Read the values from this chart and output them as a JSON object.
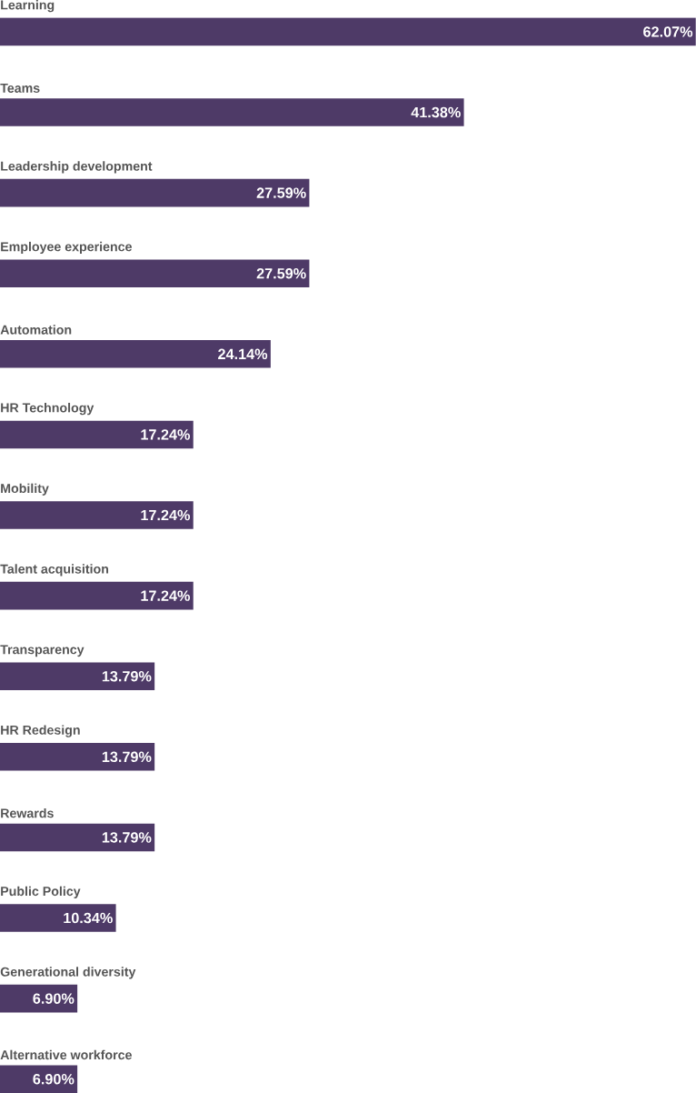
{
  "chart_data": {
    "type": "bar",
    "orientation": "horizontal",
    "color": "#4e3a67",
    "categories": [
      "Learning",
      "Teams",
      "Leadership development",
      "Employee experience",
      "Automation",
      "HR Technology",
      "Mobility",
      "Talent acquisition",
      "Transparency",
      "HR Redesign",
      "Rewards",
      "Public Policy",
      "Generational diversity",
      "Alternative workforce"
    ],
    "values": [
      62.07,
      41.38,
      27.59,
      27.59,
      24.14,
      17.24,
      17.24,
      17.24,
      13.79,
      13.79,
      13.79,
      10.34,
      6.9,
      6.9
    ],
    "value_labels": [
      "62.07%",
      "41.38%",
      "27.59%",
      "27.59%",
      "24.14%",
      "17.24%",
      "17.24%",
      "17.24%",
      "13.79%",
      "13.79%",
      "13.79%",
      "10.34%",
      "6.90%",
      "6.90%"
    ]
  }
}
